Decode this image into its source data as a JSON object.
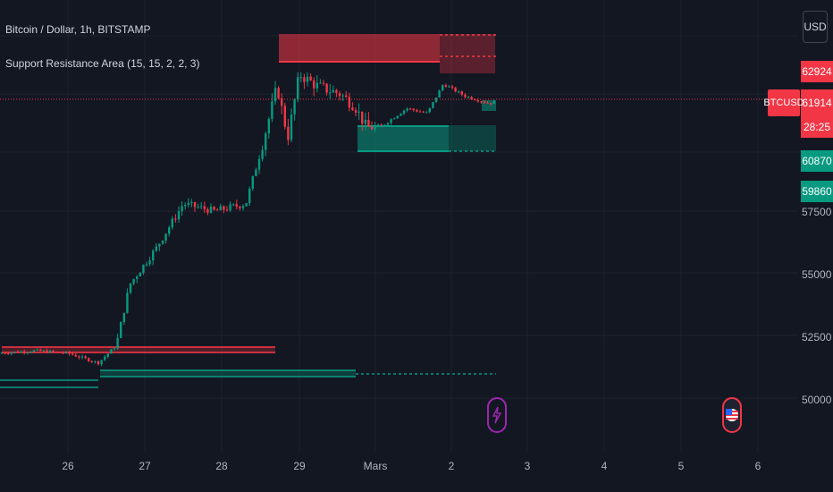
{
  "header": {
    "title": "Bitcoin / Dollar, 1h, BITSTAMP",
    "indicator": "Support Resistance Area (15, 15, 2, 2, 3)",
    "currency": "USD"
  },
  "price_scale": {
    "symbol_tag": "BTCUSD",
    "tags": [
      {
        "label": "62924",
        "color": "#f23645"
      },
      {
        "label": "61914",
        "color": "#f23645"
      },
      {
        "label": "28:25",
        "color": "#f23645"
      },
      {
        "label": "60870",
        "color": "#089981"
      },
      {
        "label": "59860",
        "color": "#089981"
      }
    ],
    "y_labels": [
      "57500",
      "55000",
      "52500",
      "50000"
    ]
  },
  "time_scale": {
    "labels": [
      "26",
      "27",
      "28",
      "29",
      "Mars",
      "2",
      "3",
      "4",
      "5",
      "6"
    ]
  },
  "events": [
    {
      "icon": "lightning-icon",
      "color": "#9c27b0"
    },
    {
      "icon": "us-flag-icon",
      "color": "#f23645"
    }
  ],
  "chart_data": {
    "type": "candlestick",
    "symbol": "BTCUSD",
    "interval": "1h",
    "ylim": [
      49000,
      64400
    ],
    "last_price": 61914,
    "resistance_zones": [
      {
        "from": 63300,
        "to": 64400
      },
      {
        "from": 51800,
        "to": 52000
      }
    ],
    "support_zones": [
      {
        "from": 59860,
        "to": 60870
      },
      {
        "from": 50900,
        "to": 51100
      }
    ],
    "colors": {
      "up": "#089981",
      "down": "#f23645",
      "background": "#131722"
    }
  }
}
